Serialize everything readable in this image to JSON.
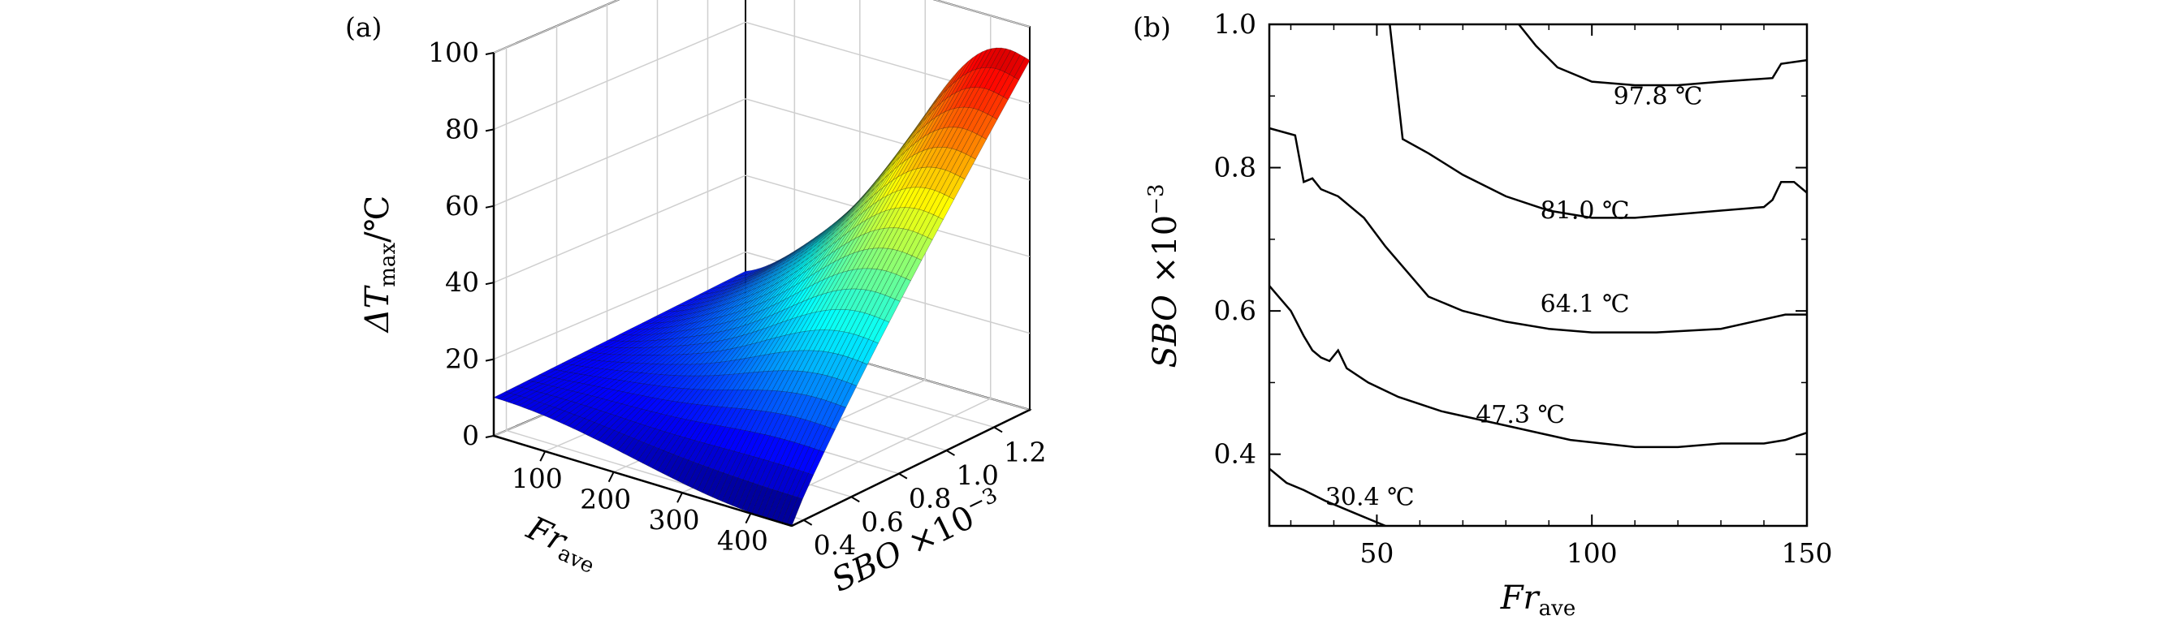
{
  "panels": {
    "a": "(a)",
    "b": "(b)"
  },
  "chart_data": [
    {
      "type": "surface",
      "zlabel": "ΔT",
      "zlabel_sub": "max",
      "zlabel_unit": "/℃",
      "xlabel": "Fr",
      "xlabel_sub": "ave",
      "ylabel": "SBO",
      "ylabel_exp": "×10",
      "ylabel_exp_power": "−3",
      "x_ticks": [
        "100",
        "200",
        "300",
        "400"
      ],
      "y_ticks": [
        "0.4",
        "0.6",
        "0.8",
        "1.0",
        "1.2"
      ],
      "z_ticks": [
        "0",
        "20",
        "40",
        "60",
        "80",
        "100"
      ],
      "xlim": [
        25,
        460
      ],
      "ylim": [
        0.35,
        1.35
      ],
      "zlim": [
        0,
        100
      ],
      "colormap": "jet",
      "surface_corners": {
        "x_low_y_high": 15,
        "x_high_y_high": 90,
        "x_high_y_low": 0,
        "x_low_y_low": 10
      }
    },
    {
      "type": "contour",
      "xlabel": "Fr",
      "xlabel_sub": "ave",
      "ylabel": "SBO",
      "ylabel_exp": "×10",
      "ylabel_exp_power": "−3",
      "x_ticks": [
        "50",
        "100",
        "150"
      ],
      "y_ticks": [
        "0.4",
        "0.6",
        "0.8",
        "1.0"
      ],
      "xlim": [
        25,
        150
      ],
      "ylim": [
        0.3,
        1.0
      ],
      "contours": [
        {
          "label": "97.8 ℃",
          "label_at": [
            105,
            0.9
          ],
          "x": [
            83,
            87,
            92,
            100,
            110,
            120,
            130,
            142,
            144,
            150
          ],
          "y": [
            1.0,
            0.97,
            0.94,
            0.92,
            0.915,
            0.915,
            0.92,
            0.925,
            0.945,
            0.95
          ]
        },
        {
          "label": "81.0 ℃",
          "label_at": [
            88,
            0.74
          ],
          "x": [
            53,
            56,
            62,
            70,
            80,
            90,
            100,
            110,
            120,
            130,
            140,
            142,
            144,
            147,
            150
          ],
          "y": [
            1.0,
            0.84,
            0.82,
            0.79,
            0.76,
            0.74,
            0.73,
            0.73,
            0.735,
            0.74,
            0.745,
            0.755,
            0.78,
            0.78,
            0.765
          ]
        },
        {
          "label": "64.1 ℃",
          "label_at": [
            88,
            0.61
          ],
          "x": [
            25,
            31,
            33,
            35,
            37,
            41,
            47,
            52,
            57,
            62,
            70,
            80,
            90,
            100,
            115,
            130,
            145,
            150
          ],
          "y": [
            0.855,
            0.845,
            0.78,
            0.785,
            0.77,
            0.76,
            0.73,
            0.69,
            0.655,
            0.62,
            0.6,
            0.585,
            0.575,
            0.57,
            0.57,
            0.575,
            0.595,
            0.595
          ]
        },
        {
          "label": "47.3 ℃",
          "label_at": [
            73,
            0.455
          ],
          "x": [
            25,
            30,
            33,
            35,
            37,
            39,
            41,
            43,
            48,
            55,
            65,
            80,
            95,
            110,
            120,
            130,
            140,
            145,
            150
          ],
          "y": [
            0.635,
            0.6,
            0.565,
            0.545,
            0.535,
            0.53,
            0.545,
            0.52,
            0.5,
            0.48,
            0.46,
            0.44,
            0.42,
            0.41,
            0.41,
            0.415,
            0.415,
            0.42,
            0.43
          ]
        },
        {
          "label": "30.4 ℃",
          "label_at": [
            38,
            0.34
          ],
          "x": [
            25,
            29,
            33,
            38,
            46,
            52
          ],
          "y": [
            0.38,
            0.36,
            0.35,
            0.335,
            0.315,
            0.3
          ]
        }
      ]
    }
  ]
}
